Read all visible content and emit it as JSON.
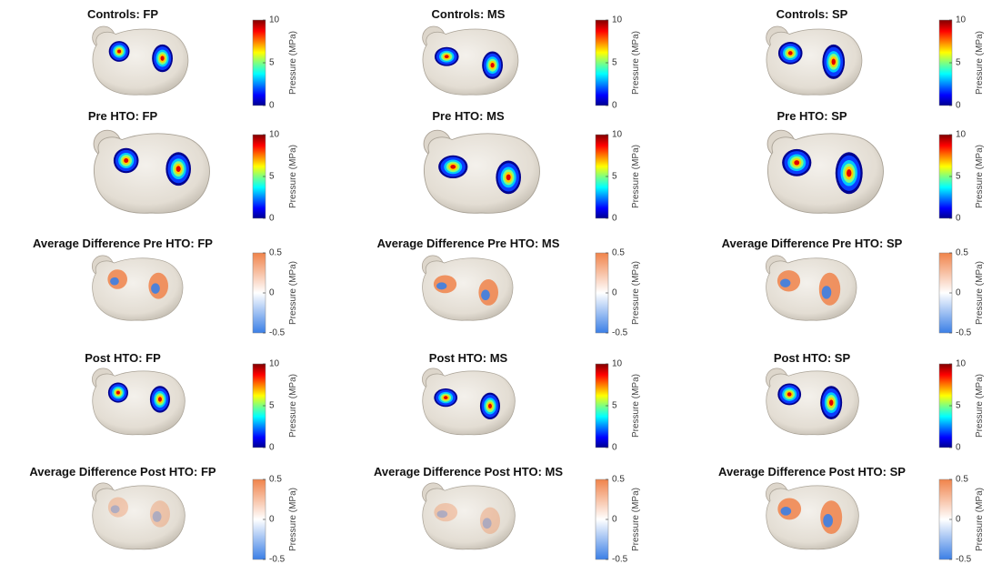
{
  "panels": [
    {
      "title": "Controls: FP",
      "colormap": "jet",
      "colorbar": {
        "ticks": [
          0,
          5,
          10
        ],
        "label": "Pressure (MPa)"
      }
    },
    {
      "title": "Controls: MS",
      "colormap": "jet",
      "colorbar": {
        "ticks": [
          0,
          5,
          10
        ],
        "label": "Pressure (MPa)"
      }
    },
    {
      "title": "Controls: SP",
      "colormap": "jet",
      "colorbar": {
        "ticks": [
          0,
          5,
          10
        ],
        "label": "Pressure (MPa)"
      }
    },
    {
      "title": "Pre HTO: FP",
      "colormap": "jet",
      "colorbar": {
        "ticks": [
          0,
          5,
          10
        ],
        "label": "Pressure (MPa)"
      }
    },
    {
      "title": "Pre HTO: MS",
      "colormap": "jet",
      "colorbar": {
        "ticks": [
          0,
          5,
          10
        ],
        "label": "Pressure (MPa)"
      }
    },
    {
      "title": "Pre HTO: SP",
      "colormap": "jet",
      "colorbar": {
        "ticks": [
          0,
          5,
          10
        ],
        "label": "Pressure (MPa)"
      }
    },
    {
      "title": "Average Difference Pre HTO: FP",
      "colormap": "diverging",
      "colorbar": {
        "ticks": [
          -0.5,
          0,
          0.5
        ],
        "label": "Pressure (MPa)"
      }
    },
    {
      "title": "Average Difference Pre HTO: MS",
      "colormap": "diverging",
      "colorbar": {
        "ticks": [
          -0.5,
          0,
          0.5
        ],
        "label": "Pressure (MPa)"
      }
    },
    {
      "title": "Average Difference Pre HTO: SP",
      "colormap": "diverging",
      "colorbar": {
        "ticks": [
          -0.5,
          0,
          0.5
        ],
        "label": "Pressure (MPa)"
      }
    },
    {
      "title": "Post HTO: FP",
      "colormap": "jet",
      "colorbar": {
        "ticks": [
          0,
          5,
          10
        ],
        "label": "Pressure (MPa)"
      }
    },
    {
      "title": "Post HTO: MS",
      "colormap": "jet",
      "colorbar": {
        "ticks": [
          0,
          5,
          10
        ],
        "label": "Pressure (MPa)"
      }
    },
    {
      "title": "Post HTO: SP",
      "colormap": "jet",
      "colorbar": {
        "ticks": [
          0,
          5,
          10
        ],
        "label": "Pressure (MPa)"
      }
    },
    {
      "title": "Average Difference Post HTO: FP",
      "colormap": "diverging",
      "colorbar": {
        "ticks": [
          -0.5,
          0,
          0.5
        ],
        "label": "Pressure (MPa)"
      }
    },
    {
      "title": "Average Difference Post HTO: MS",
      "colormap": "diverging",
      "colorbar": {
        "ticks": [
          -0.5,
          0,
          0.5
        ],
        "label": "Pressure (MPa)"
      }
    },
    {
      "title": "Average Difference Post HTO: SP",
      "colormap": "diverging",
      "colorbar": {
        "ticks": [
          -0.5,
          0,
          0.5
        ],
        "label": "Pressure (MPa)"
      }
    }
  ]
}
